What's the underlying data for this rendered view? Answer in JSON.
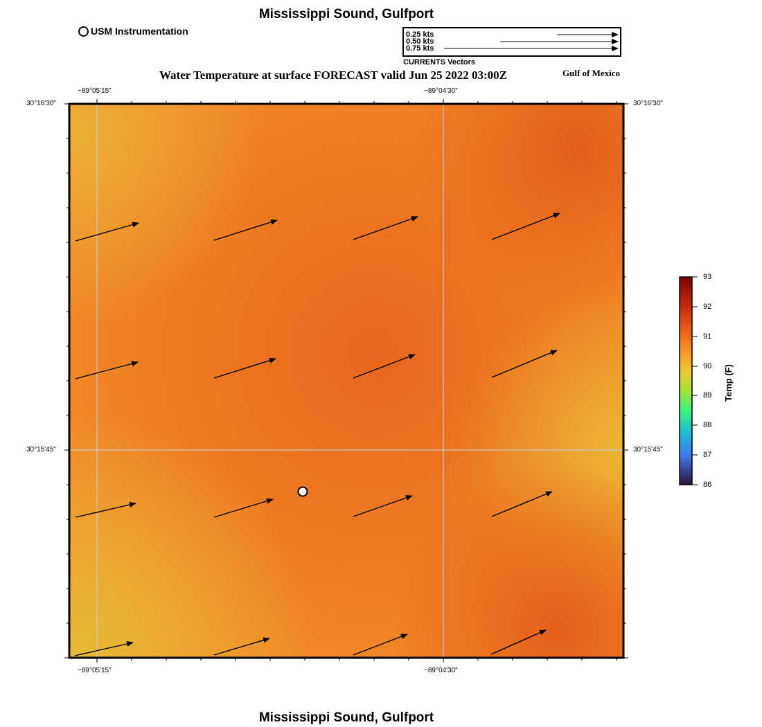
{
  "title": "Mississippi Sound, Gulfport",
  "footer_title": "Mississippi Sound, Gulfport",
  "legend": {
    "instrument_label": "USM Instrumentation"
  },
  "vector_key": {
    "entries": [
      "0.25 kts",
      "0.50 kts",
      "0.75 kts"
    ],
    "caption": "CURRENTS Vectors"
  },
  "subtitle": "Water Temperature at surface FORECAST valid Jun 25 2022 03:00Z",
  "region_label": "Gulf of Mexico",
  "axes": {
    "lon_ticks": [
      "−89°05'15\"",
      "−89°04'30\""
    ],
    "lat_ticks": [
      "30°16'30\"",
      "30°15'45\""
    ]
  },
  "colorbar": {
    "title": "Temp (F)",
    "ticks": [
      "93",
      "92",
      "91",
      "90",
      "89",
      "88",
      "87",
      "86"
    ],
    "min": 86,
    "max": 93
  },
  "colors": {
    "warm_dark": "#e8641c",
    "warm_mid": "#f07f24",
    "warm_light": "#f59a2a",
    "yellowish": "#e9b833",
    "grid": "#c8c8c8"
  }
}
